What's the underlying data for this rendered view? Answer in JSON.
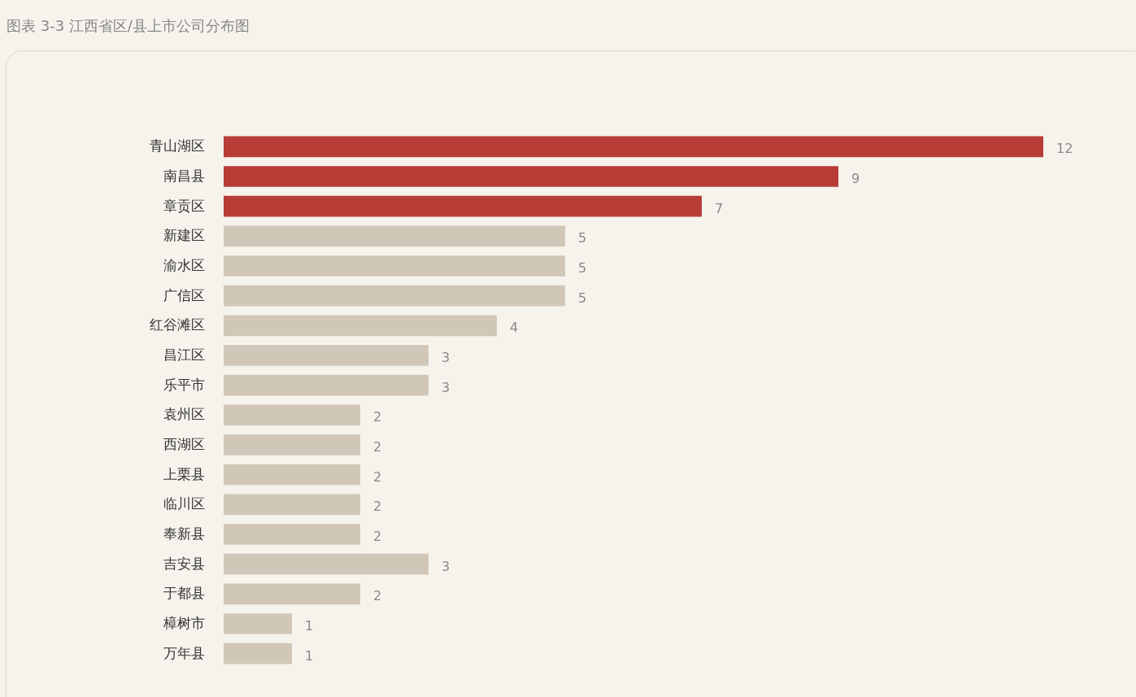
{
  "chart_data": {
    "type": "bar",
    "orientation": "horizontal",
    "title": "图表 3-3 江西省区/县上市公司分布图",
    "categories": [
      "青山湖区",
      "南昌县",
      "章贡区",
      "新建区",
      "渝水区",
      "广信区",
      "红谷滩区",
      "昌江区",
      "乐平市",
      "袁州区",
      "西湖区",
      "上栗县",
      "临川区",
      "奉新县",
      "吉安县",
      "于都县",
      "樟树市",
      "万年县"
    ],
    "values": [
      12,
      9,
      7,
      5,
      5,
      5,
      4,
      3,
      3,
      2,
      2,
      2,
      2,
      2,
      3,
      2,
      1,
      1
    ],
    "colors": [
      "#b93d37",
      "#b93d37",
      "#b93d37",
      "#d1c7b9",
      "#d1c7b9",
      "#d1c7b9",
      "#d1c7b9",
      "#d1c7b9",
      "#d1c7b9",
      "#d1c7b9",
      "#d1c7b9",
      "#d1c7b9",
      "#d1c7b9",
      "#d1c7b9",
      "#d1c7b9",
      "#d1c7b9",
      "#d1c7b9",
      "#d1c7b9"
    ],
    "data_labels": true
  }
}
